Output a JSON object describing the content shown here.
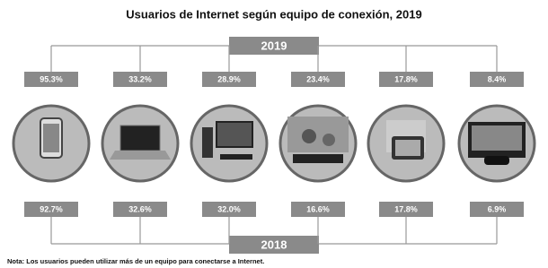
{
  "header": {
    "title": "Usuarios de Internet según equipo de conexión, 2019"
  },
  "years": {
    "top": "2019",
    "bottom": "2018"
  },
  "devices": [
    {
      "value_2019": "95.3%",
      "value_2018": "92.7%"
    },
    {
      "value_2019": "33.2%",
      "value_2018": "32.6%"
    },
    {
      "value_2019": "28.9%",
      "value_2018": "32.0%"
    },
    {
      "value_2019": "23.4%",
      "value_2018": "16.6%"
    },
    {
      "value_2019": "17.8%",
      "value_2018": "17.8%"
    },
    {
      "value_2019": "8.4%",
      "value_2018": "6.9%"
    }
  ],
  "note": "Nota: Los usuarios pueden utilizar más de un equipo para conectarse a Internet."
}
